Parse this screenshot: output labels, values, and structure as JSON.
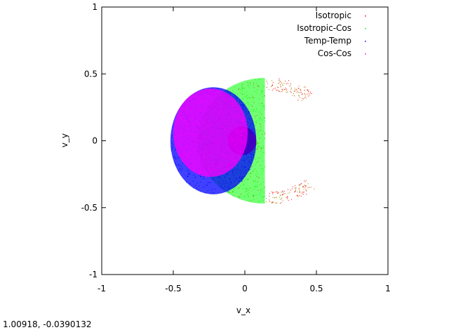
{
  "chart_data": {
    "type": "scatter",
    "xlabel": "v_x",
    "ylabel": "v_y",
    "xlim": [
      -1,
      1
    ],
    "ylim": [
      -1,
      1
    ],
    "xticks": [
      "-1",
      "-0.5",
      "0",
      "0.5",
      "1"
    ],
    "yticks": [
      "-1",
      "-0.5",
      "0",
      "0.5",
      "1"
    ],
    "legend_position": "top-right",
    "series": [
      {
        "name": "Isotropic",
        "color": "#ff0000",
        "region": {
          "shape": "disk",
          "cx": -0.02,
          "cy": 0.0,
          "r": 0.1
        }
      },
      {
        "name": "Isotropic-Cos",
        "color": "#00ff00",
        "region": {
          "shape": "half-disk-left",
          "cx": 0.14,
          "cy": 0.0,
          "r": 0.47
        }
      },
      {
        "name": "Temp-Temp",
        "color": "#0000ff",
        "region": {
          "shape": "ellipse",
          "cx": -0.22,
          "cy": 0.0,
          "rx": 0.3,
          "ry": 0.4
        }
      },
      {
        "name": "Cos-Cos",
        "color": "#ff00ff",
        "region": {
          "shape": "ellipse",
          "cx": -0.24,
          "cy": 0.06,
          "rx": 0.26,
          "ry": 0.33
        }
      }
    ]
  },
  "status": {
    "coordinates": "1.00918, -0.0390132"
  }
}
